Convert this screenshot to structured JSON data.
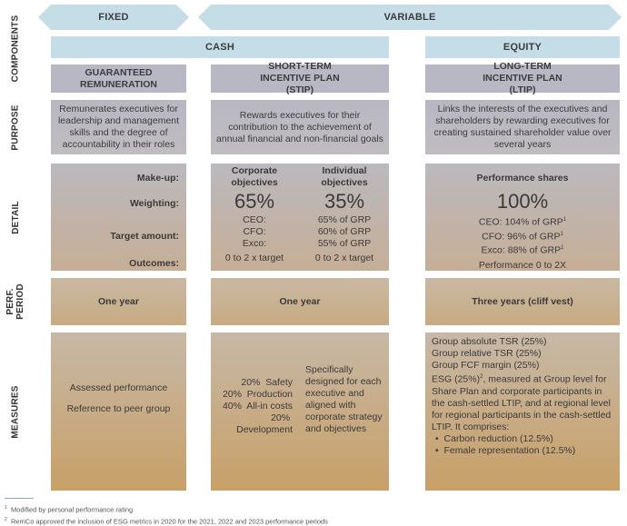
{
  "row_labels": {
    "components": "COMPONENTS",
    "purpose": "PURPOSE",
    "detail": "DETAIL",
    "perf_period": "PERF. PERIOD",
    "measures": "MEASURES"
  },
  "bands": {
    "fixed": "FIXED",
    "variable": "VARIABLE",
    "cash": "CASH",
    "equity": "EQUITY"
  },
  "columns": [
    {
      "title": "GUARANTEED REMUNERATION",
      "purpose": "Remunerates executives for leadership and management skills and the degree of accountability in their roles",
      "detail_labels": {
        "makeup": "Make-up:",
        "weighting": "Weighting:",
        "target": "Target amount:",
        "outcomes": "Outcomes:"
      },
      "period": "One year",
      "measures": [
        "Assessed performance",
        "Reference to peer group"
      ]
    },
    {
      "title": "SHORT-TERM INCENTIVE PLAN (STIP)",
      "purpose": "Rewards executives for their contribution to the achievement of annual financial and non-financial goals",
      "sub": [
        {
          "makeup": "Corporate objectives",
          "weighting": "65%",
          "targets": [
            "CEO:",
            "CFO:",
            "Exco:"
          ],
          "outcomes": "0 to 2 x target"
        },
        {
          "makeup": "Individual objectives",
          "weighting": "35%",
          "targets": [
            "65% of GRP",
            "60% of GRP",
            "55% of GRP"
          ],
          "outcomes": "0 to 2 x target"
        }
      ],
      "period": "One year",
      "measures_left": [
        {
          "pct": "20%",
          "label": "Safety"
        },
        {
          "pct": "20%",
          "label": "Production"
        },
        {
          "pct": "40%",
          "label": "All-in costs"
        },
        {
          "pct": "20%",
          "label": "Development"
        }
      ],
      "measures_right": "Specifically designed for each executive and aligned with corporate strategy and objectives"
    },
    {
      "title": "LONG-TERM INCENTIVE PLAN (LTIP)",
      "purpose": "Links the interests of the executives and shareholders by rewarding executives for creating sustained shareholder value over several years",
      "makeup": "Performance shares",
      "weighting": "100%",
      "targets": [
        "CEO: 104% of GRP",
        "CFO: 96% of GRP",
        "Exco: 88% of GRP"
      ],
      "target_sup": "1",
      "outcomes": "Performance 0 to 2X",
      "period": "Three years (cliff vest)",
      "measures": [
        "Group absolute TSR (25%)",
        "Group relative TSR (25%)",
        "Group FCF margin (25%)"
      ],
      "esg_a": "ESG (25%)",
      "esg_sup": "2",
      "esg_b": ", measured at Group level for Share Plan and corporate participants in the cash-settled LTIP, and at regional level for regional participants in the cash-settled LTIP. It comprises:",
      "bullets": [
        "Carbon reduction (12.5%)",
        "Female representation (12.5%)"
      ]
    }
  ],
  "footnotes": [
    {
      "num": "1",
      "text": "Modified by personal performance rating"
    },
    {
      "num": "2",
      "text": "RemCo approved the inclusion of ESG metrics in 2020 for the 2021, 2022 and 2023 performance periods"
    }
  ]
}
